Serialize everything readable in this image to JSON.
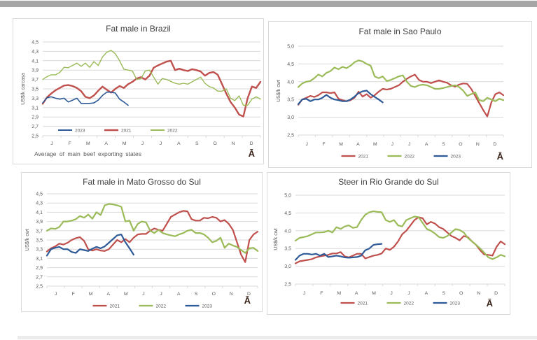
{
  "logo_glyph": "Ā",
  "colors": {
    "red_2021": "#C0504D",
    "green_2022": "#9BBB59",
    "blue_2023": "#2E5B97",
    "grid": "#D9D9D9",
    "axis_text": "#595959",
    "title_text": "#3F3F3F",
    "top_bar": "#A6A6A6",
    "bottom_bar": "#EBEBEB",
    "logo": "#3A251A"
  },
  "chart_data": [
    {
      "type": "line",
      "title": "Fat male in Brazil",
      "ylabel": "US$/k carcasa",
      "ylim": [
        2.5,
        4.5
      ],
      "yticks": [
        "4,5",
        "4,3",
        "4,1",
        "3,9",
        "3,7",
        "3,5",
        "3,3",
        "3,1",
        "2,9",
        "2,7",
        "2,5"
      ],
      "months": [
        "J",
        "F",
        "M",
        "A",
        "M",
        "J",
        "J",
        "A",
        "S",
        "O",
        "N",
        "D"
      ],
      "span": 52,
      "grid": true,
      "legend_position": "inside-bottom-left",
      "legend_order": [
        "2023",
        "2021",
        "2022"
      ],
      "footnote": "Average  of main  beef  exporting  states",
      "series": [
        {
          "name": "2021",
          "color": "#C0504D",
          "width": 2.4,
          "values": [
            3.18,
            3.32,
            3.4,
            3.47,
            3.52,
            3.57,
            3.58,
            3.56,
            3.52,
            3.45,
            3.33,
            3.3,
            3.36,
            3.46,
            3.55,
            3.48,
            3.42,
            3.5,
            3.56,
            3.52,
            3.6,
            3.65,
            3.72,
            3.75,
            3.7,
            3.78,
            3.95,
            4.0,
            4.04,
            4.08,
            4.1,
            3.9,
            3.93,
            3.9,
            3.88,
            3.92,
            3.9,
            3.87,
            3.78,
            3.84,
            3.86,
            3.8,
            3.6,
            3.4,
            3.22,
            3.1,
            2.95,
            2.91,
            3.3,
            3.55,
            3.52,
            3.65
          ]
        },
        {
          "name": "2022",
          "color": "#9BBB59",
          "width": 1.4,
          "values": [
            3.7,
            3.76,
            3.8,
            3.8,
            3.85,
            3.96,
            3.95,
            4.0,
            4.05,
            3.98,
            4.05,
            3.96,
            4.08,
            4.0,
            4.18,
            4.28,
            4.32,
            4.25,
            4.1,
            3.92,
            3.9,
            3.88,
            3.7,
            3.72,
            3.88,
            3.9,
            3.75,
            3.6,
            3.72,
            3.7,
            3.66,
            3.62,
            3.6,
            3.62,
            3.6,
            3.65,
            3.7,
            3.75,
            3.62,
            3.55,
            3.52,
            3.45,
            3.45,
            3.5,
            3.3,
            3.25,
            3.35,
            3.15,
            3.15,
            3.28,
            3.33,
            3.28
          ]
        },
        {
          "name": "2023",
          "color": "#2E5B97",
          "width": 1.6,
          "values": [
            3.2,
            3.31,
            3.33,
            3.3,
            3.28,
            3.3,
            3.22,
            3.26,
            3.3,
            3.19,
            3.19,
            3.19,
            3.2,
            3.26,
            3.36,
            3.43,
            3.43,
            3.41,
            3.28,
            3.22,
            3.15
          ]
        }
      ]
    },
    {
      "type": "line",
      "title": "Fat male in Sao Paulo",
      "ylabel": "US$/k cwt",
      "ylim": [
        2.5,
        5.0
      ],
      "yticks": [
        "5,0",
        "4,5",
        "4,0",
        "3,5",
        "3,0",
        "2,5"
      ],
      "months": [
        "J",
        "F",
        "M",
        "A",
        "M",
        "J",
        "J",
        "A",
        "S",
        "O",
        "N",
        "D"
      ],
      "span": 52,
      "grid": true,
      "legend_position": "below-center",
      "legend_order": [
        "2021",
        "2022",
        "2023"
      ],
      "footnote": "",
      "series": [
        {
          "name": "2021",
          "color": "#C0504D",
          "width": 2.2,
          "values": [
            3.35,
            3.5,
            3.55,
            3.6,
            3.57,
            3.62,
            3.7,
            3.7,
            3.68,
            3.7,
            3.52,
            3.48,
            3.45,
            3.48,
            3.55,
            3.72,
            3.58,
            3.65,
            3.55,
            3.62,
            3.72,
            3.8,
            3.78,
            3.8,
            3.85,
            3.9,
            4.0,
            4.08,
            4.15,
            4.2,
            4.05,
            4.0,
            4.0,
            3.96,
            4.0,
            4.04,
            4.0,
            3.97,
            3.9,
            3.86,
            3.92,
            3.95,
            3.94,
            3.8,
            3.6,
            3.4,
            3.2,
            3.02,
            3.42,
            3.65,
            3.7,
            3.62
          ]
        },
        {
          "name": "2022",
          "color": "#9BBB59",
          "width": 2.2,
          "values": [
            3.85,
            3.95,
            4.0,
            4.02,
            4.1,
            4.2,
            4.15,
            4.25,
            4.3,
            4.4,
            4.35,
            4.42,
            4.38,
            4.45,
            4.55,
            4.6,
            4.57,
            4.5,
            4.45,
            4.15,
            4.1,
            4.15,
            4.02,
            4.05,
            4.1,
            4.15,
            4.18,
            4.0,
            3.88,
            3.85,
            3.9,
            3.92,
            3.9,
            3.85,
            3.8,
            3.8,
            3.82,
            3.85,
            3.88,
            3.9,
            3.85,
            3.75,
            3.6,
            3.65,
            3.7,
            3.48,
            3.45,
            3.55,
            3.5,
            3.45,
            3.52,
            3.48
          ]
        },
        {
          "name": "2023",
          "color": "#2E5B97",
          "width": 2.2,
          "values": [
            3.37,
            3.5,
            3.52,
            3.45,
            3.5,
            3.5,
            3.55,
            3.63,
            3.55,
            3.5,
            3.48,
            3.45,
            3.45,
            3.5,
            3.58,
            3.68,
            3.73,
            3.75,
            3.65,
            3.57,
            3.5,
            3.42
          ]
        }
      ]
    },
    {
      "type": "line",
      "title": "Fat male in Mato Grosso do Sul",
      "ylabel": "US$/k cwt",
      "ylim": [
        2.5,
        4.5
      ],
      "yticks": [
        "4,5",
        "4,3",
        "4,1",
        "3,9",
        "3,7",
        "3,5",
        "3,3",
        "3,1",
        "2,9",
        "2,7",
        "2,5"
      ],
      "months": [
        "J",
        "F",
        "M",
        "A",
        "M",
        "J",
        "J",
        "A",
        "S",
        "O",
        "N",
        "D"
      ],
      "span": 52,
      "grid": true,
      "legend_position": "below-center",
      "legend_order": [
        "2021",
        "2022",
        "2023"
      ],
      "footnote": "",
      "series": [
        {
          "name": "2021",
          "color": "#C0504D",
          "width": 2.2,
          "values": [
            3.25,
            3.32,
            3.36,
            3.42,
            3.4,
            3.44,
            3.5,
            3.54,
            3.56,
            3.48,
            3.3,
            3.27,
            3.3,
            3.27,
            3.26,
            3.3,
            3.4,
            3.5,
            3.45,
            3.52,
            3.45,
            3.55,
            3.62,
            3.63,
            3.63,
            3.7,
            3.75,
            3.72,
            3.7,
            3.85,
            4.0,
            4.05,
            4.1,
            4.13,
            4.12,
            3.95,
            3.92,
            3.92,
            3.98,
            3.97,
            4.0,
            3.98,
            3.9,
            3.93,
            3.85,
            3.72,
            3.45,
            3.18,
            3.02,
            3.5,
            3.62,
            3.68
          ]
        },
        {
          "name": "2022",
          "color": "#9BBB59",
          "width": 2.2,
          "values": [
            3.7,
            3.75,
            3.74,
            3.78,
            3.9,
            3.9,
            3.92,
            3.95,
            4.02,
            3.98,
            4.05,
            3.96,
            4.1,
            4.04,
            4.25,
            4.28,
            4.27,
            4.25,
            4.22,
            3.9,
            3.92,
            3.7,
            3.85,
            3.9,
            3.88,
            3.7,
            3.65,
            3.72,
            3.65,
            3.62,
            3.6,
            3.58,
            3.62,
            3.65,
            3.7,
            3.72,
            3.65,
            3.65,
            3.62,
            3.55,
            3.45,
            3.48,
            3.55,
            3.33,
            3.42,
            3.38,
            3.35,
            3.28,
            3.22,
            3.32,
            3.33,
            3.26
          ]
        },
        {
          "name": "2023",
          "color": "#2E5B97",
          "width": 2.2,
          "values": [
            3.16,
            3.3,
            3.33,
            3.35,
            3.3,
            3.3,
            3.24,
            3.22,
            3.3,
            3.28,
            3.26,
            3.31,
            3.35,
            3.32,
            3.36,
            3.44,
            3.52,
            3.6,
            3.62,
            3.45,
            3.32,
            3.18
          ]
        }
      ]
    },
    {
      "type": "line",
      "title": "Steer  in Rio Grande do Sul",
      "ylabel": "US$/k cwt",
      "ylim": [
        2.5,
        5.0
      ],
      "yticks": [
        "5,0",
        "4,5",
        "4,0",
        "3,5",
        "3,0",
        "2,5"
      ],
      "months": [
        "J",
        "F",
        "M",
        "A",
        "M",
        "J",
        "J",
        "A",
        "S",
        "O",
        "N",
        "D"
      ],
      "span": 52,
      "grid": true,
      "legend_position": "below-center",
      "legend_order": [
        "2021",
        "2022",
        "2023"
      ],
      "footnote": "",
      "series": [
        {
          "name": "2021",
          "color": "#C0504D",
          "width": 2.2,
          "values": [
            3.08,
            3.14,
            3.16,
            3.18,
            3.2,
            3.25,
            3.28,
            3.3,
            3.32,
            3.36,
            3.36,
            3.4,
            3.28,
            3.25,
            3.3,
            3.35,
            3.35,
            3.22,
            3.26,
            3.3,
            3.32,
            3.36,
            3.5,
            3.46,
            3.55,
            3.7,
            3.9,
            4.0,
            4.15,
            4.3,
            4.38,
            4.35,
            4.18,
            4.25,
            4.2,
            4.1,
            4.05,
            3.95,
            3.85,
            3.8,
            3.73,
            3.85,
            3.82,
            3.7,
            3.6,
            3.45,
            3.33,
            3.32,
            3.3,
            3.55,
            3.7,
            3.62
          ]
        },
        {
          "name": "2022",
          "color": "#9BBB59",
          "width": 2.2,
          "values": [
            3.72,
            3.8,
            3.82,
            3.85,
            3.9,
            3.95,
            3.95,
            3.96,
            4.0,
            3.95,
            4.1,
            4.05,
            4.12,
            4.15,
            4.08,
            4.1,
            4.3,
            4.45,
            4.52,
            4.55,
            4.53,
            4.52,
            4.3,
            4.25,
            4.3,
            4.15,
            4.12,
            4.3,
            4.35,
            4.4,
            4.38,
            4.22,
            4.05,
            4.0,
            3.92,
            3.82,
            3.8,
            3.85,
            3.95,
            4.05,
            4.02,
            3.95,
            3.8,
            3.7,
            3.6,
            3.5,
            3.38,
            3.25,
            3.2,
            3.25,
            3.32,
            3.28
          ]
        },
        {
          "name": "2023",
          "color": "#2E5B97",
          "width": 2.2,
          "values": [
            3.18,
            3.3,
            3.35,
            3.35,
            3.33,
            3.35,
            3.3,
            3.35,
            3.26,
            3.28,
            3.3,
            3.28,
            3.25,
            3.24,
            3.25,
            3.26,
            3.3,
            3.45,
            3.5,
            3.6,
            3.62,
            3.63
          ]
        }
      ]
    }
  ]
}
